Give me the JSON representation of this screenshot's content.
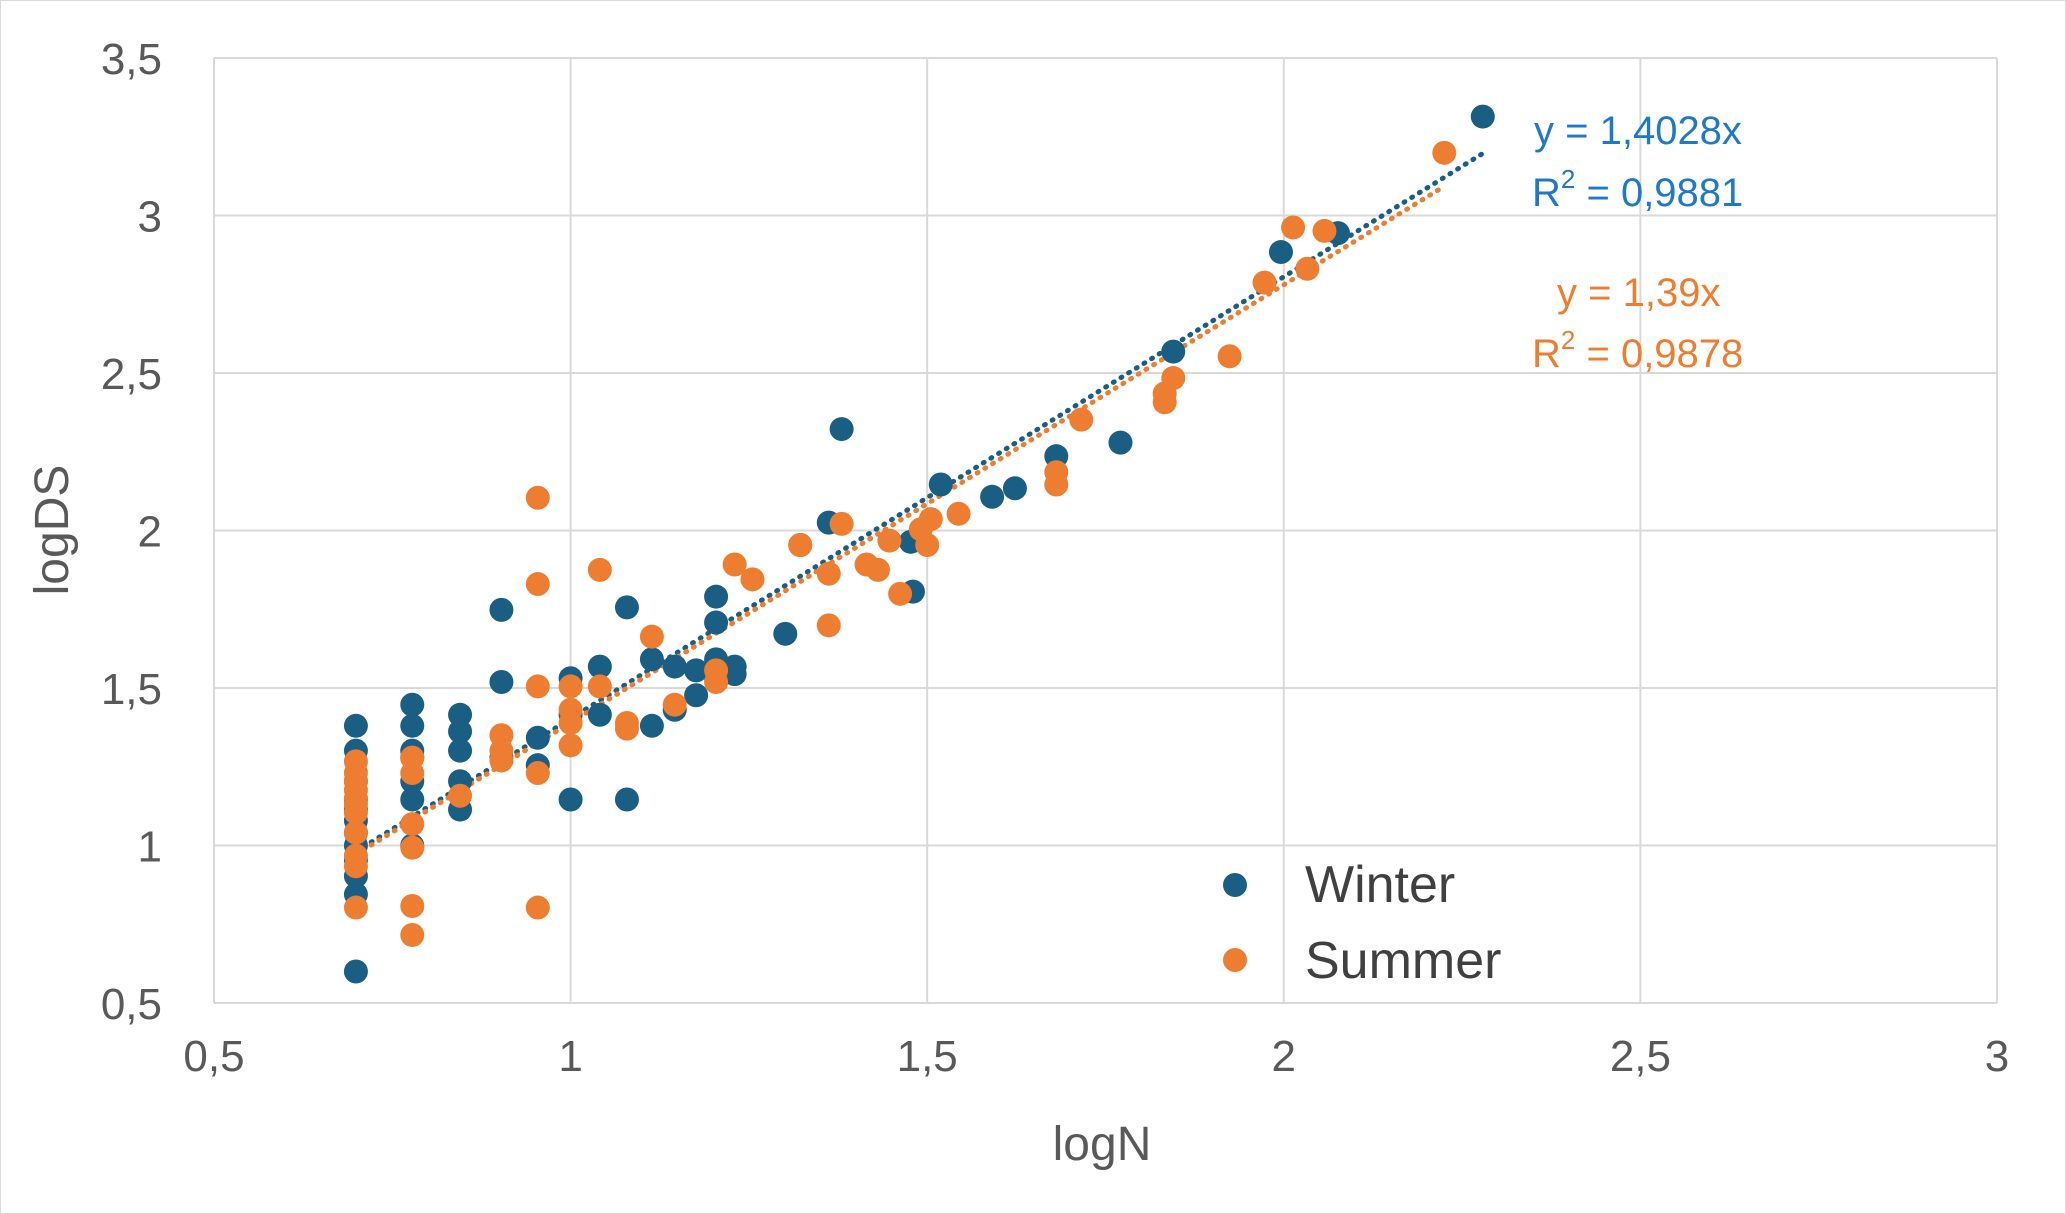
{
  "chart_data": {
    "type": "scatter",
    "xlabel": "logN",
    "ylabel": "logDS",
    "xlim": [
      0.5,
      3
    ],
    "ylim": [
      0.5,
      3.5
    ],
    "x_ticks": [
      0.5,
      1,
      1.5,
      2,
      2.5,
      3
    ],
    "y_ticks": [
      0.5,
      1,
      1.5,
      2,
      2.5,
      3,
      3.5
    ],
    "x_tick_labels": [
      "0,5",
      "1",
      "1,5",
      "2",
      "2,5",
      "3"
    ],
    "y_tick_labels": [
      "0,5",
      "1",
      "1,5",
      "2",
      "2,5",
      "3",
      "3,5"
    ],
    "grid": true,
    "legend_position": "bottom-right",
    "series": [
      {
        "name": "Winter",
        "color": "#1b5e84",
        "points": [
          [
            0.699,
            0.6
          ],
          [
            0.699,
            0.845
          ],
          [
            0.699,
            0.903
          ],
          [
            0.699,
            0.954
          ],
          [
            0.699,
            1.0
          ],
          [
            0.699,
            1.04
          ],
          [
            0.699,
            1.079
          ],
          [
            0.699,
            1.114
          ],
          [
            0.699,
            1.146
          ],
          [
            0.699,
            1.204
          ],
          [
            0.699,
            1.301
          ],
          [
            0.699,
            1.38
          ],
          [
            0.778,
            1.0
          ],
          [
            0.778,
            1.146
          ],
          [
            0.778,
            1.204
          ],
          [
            0.778,
            1.279
          ],
          [
            0.778,
            1.301
          ],
          [
            0.778,
            1.38
          ],
          [
            0.778,
            1.447
          ],
          [
            0.845,
            1.114
          ],
          [
            0.845,
            1.204
          ],
          [
            0.845,
            1.301
          ],
          [
            0.845,
            1.362
          ],
          [
            0.845,
            1.415
          ],
          [
            0.903,
            1.279
          ],
          [
            0.903,
            1.519
          ],
          [
            0.903,
            1.748
          ],
          [
            0.954,
            1.255
          ],
          [
            0.954,
            1.342
          ],
          [
            1.0,
            1.146
          ],
          [
            1.0,
            1.415
          ],
          [
            1.0,
            1.531
          ],
          [
            1.041,
            1.415
          ],
          [
            1.041,
            1.568
          ],
          [
            1.079,
            1.146
          ],
          [
            1.079,
            1.756
          ],
          [
            1.114,
            1.38
          ],
          [
            1.114,
            1.591
          ],
          [
            1.146,
            1.431
          ],
          [
            1.146,
            1.568
          ],
          [
            1.176,
            1.477
          ],
          [
            1.176,
            1.556
          ],
          [
            1.204,
            1.531
          ],
          [
            1.204,
            1.591
          ],
          [
            1.204,
            1.708
          ],
          [
            1.204,
            1.79
          ],
          [
            1.23,
            1.544
          ],
          [
            1.23,
            1.568
          ],
          [
            1.301,
            1.672
          ],
          [
            1.322,
            1.954
          ],
          [
            1.362,
            2.025
          ],
          [
            1.38,
            2.322
          ],
          [
            1.477,
            1.964
          ],
          [
            1.48,
            1.806
          ],
          [
            1.519,
            2.146
          ],
          [
            1.591,
            2.107
          ],
          [
            1.623,
            2.134
          ],
          [
            1.681,
            2.236
          ],
          [
            1.771,
            2.279
          ],
          [
            1.845,
            2.568
          ],
          [
            1.996,
            2.884
          ],
          [
            2.076,
            2.944
          ],
          [
            2.279,
            3.314
          ]
        ]
      },
      {
        "name": "Summer",
        "color": "#ed7d31",
        "points": [
          [
            0.699,
            0.803
          ],
          [
            0.699,
            0.934
          ],
          [
            0.699,
            0.968
          ],
          [
            0.699,
            1.041
          ],
          [
            0.699,
            1.104
          ],
          [
            0.699,
            1.13
          ],
          [
            0.699,
            1.15
          ],
          [
            0.699,
            1.176
          ],
          [
            0.699,
            1.204
          ],
          [
            0.699,
            1.23
          ],
          [
            0.699,
            1.267
          ],
          [
            0.778,
            0.716
          ],
          [
            0.778,
            0.808
          ],
          [
            0.778,
            0.993
          ],
          [
            0.778,
            1.068
          ],
          [
            0.778,
            1.23
          ],
          [
            0.778,
            1.279
          ],
          [
            0.845,
            1.158
          ],
          [
            0.903,
            1.27
          ],
          [
            0.903,
            1.301
          ],
          [
            0.903,
            1.35
          ],
          [
            0.954,
            0.803
          ],
          [
            0.954,
            1.23
          ],
          [
            0.954,
            1.505
          ],
          [
            0.954,
            1.83
          ],
          [
            0.954,
            2.104
          ],
          [
            1.0,
            1.318
          ],
          [
            1.0,
            1.389
          ],
          [
            1.0,
            1.431
          ],
          [
            1.0,
            1.505
          ],
          [
            1.041,
            1.505
          ],
          [
            1.041,
            1.875
          ],
          [
            1.079,
            1.371
          ],
          [
            1.079,
            1.389
          ],
          [
            1.114,
            1.663
          ],
          [
            1.146,
            1.447
          ],
          [
            1.204,
            1.519
          ],
          [
            1.204,
            1.556
          ],
          [
            1.23,
            1.892
          ],
          [
            1.255,
            1.845
          ],
          [
            1.322,
            1.954
          ],
          [
            1.362,
            1.699
          ],
          [
            1.362,
            1.863
          ],
          [
            1.38,
            2.021
          ],
          [
            1.415,
            1.892
          ],
          [
            1.431,
            1.875
          ],
          [
            1.447,
            1.968
          ],
          [
            1.462,
            1.799
          ],
          [
            1.491,
            2.004
          ],
          [
            1.5,
            1.954
          ],
          [
            1.505,
            2.036
          ],
          [
            1.544,
            2.053
          ],
          [
            1.681,
            2.146
          ],
          [
            1.681,
            2.185
          ],
          [
            1.716,
            2.352
          ],
          [
            1.833,
            2.407
          ],
          [
            1.833,
            2.435
          ],
          [
            1.845,
            2.484
          ],
          [
            1.924,
            2.553
          ],
          [
            1.973,
            2.787
          ],
          [
            2.013,
            2.962
          ],
          [
            2.033,
            2.831
          ],
          [
            2.057,
            2.951
          ],
          [
            2.225,
            3.199
          ]
        ]
      }
    ],
    "trendlines": [
      {
        "series": "Winter",
        "slope": 1.4028,
        "x_range": [
          0.699,
          2.279
        ],
        "color": "#1b5e84",
        "equation": "y = 1,4028x",
        "r2_label": "R",
        "r2_value": " = 0,9881",
        "text_color": "#1f78c8"
      },
      {
        "series": "Summer",
        "slope": 1.39,
        "x_range": [
          0.699,
          2.225
        ],
        "color": "#ed7d31",
        "equation": "y = 1,39x",
        "r2_label": "R",
        "r2_value": " = 0,9878",
        "text_color": "#ed7d31"
      }
    ]
  }
}
